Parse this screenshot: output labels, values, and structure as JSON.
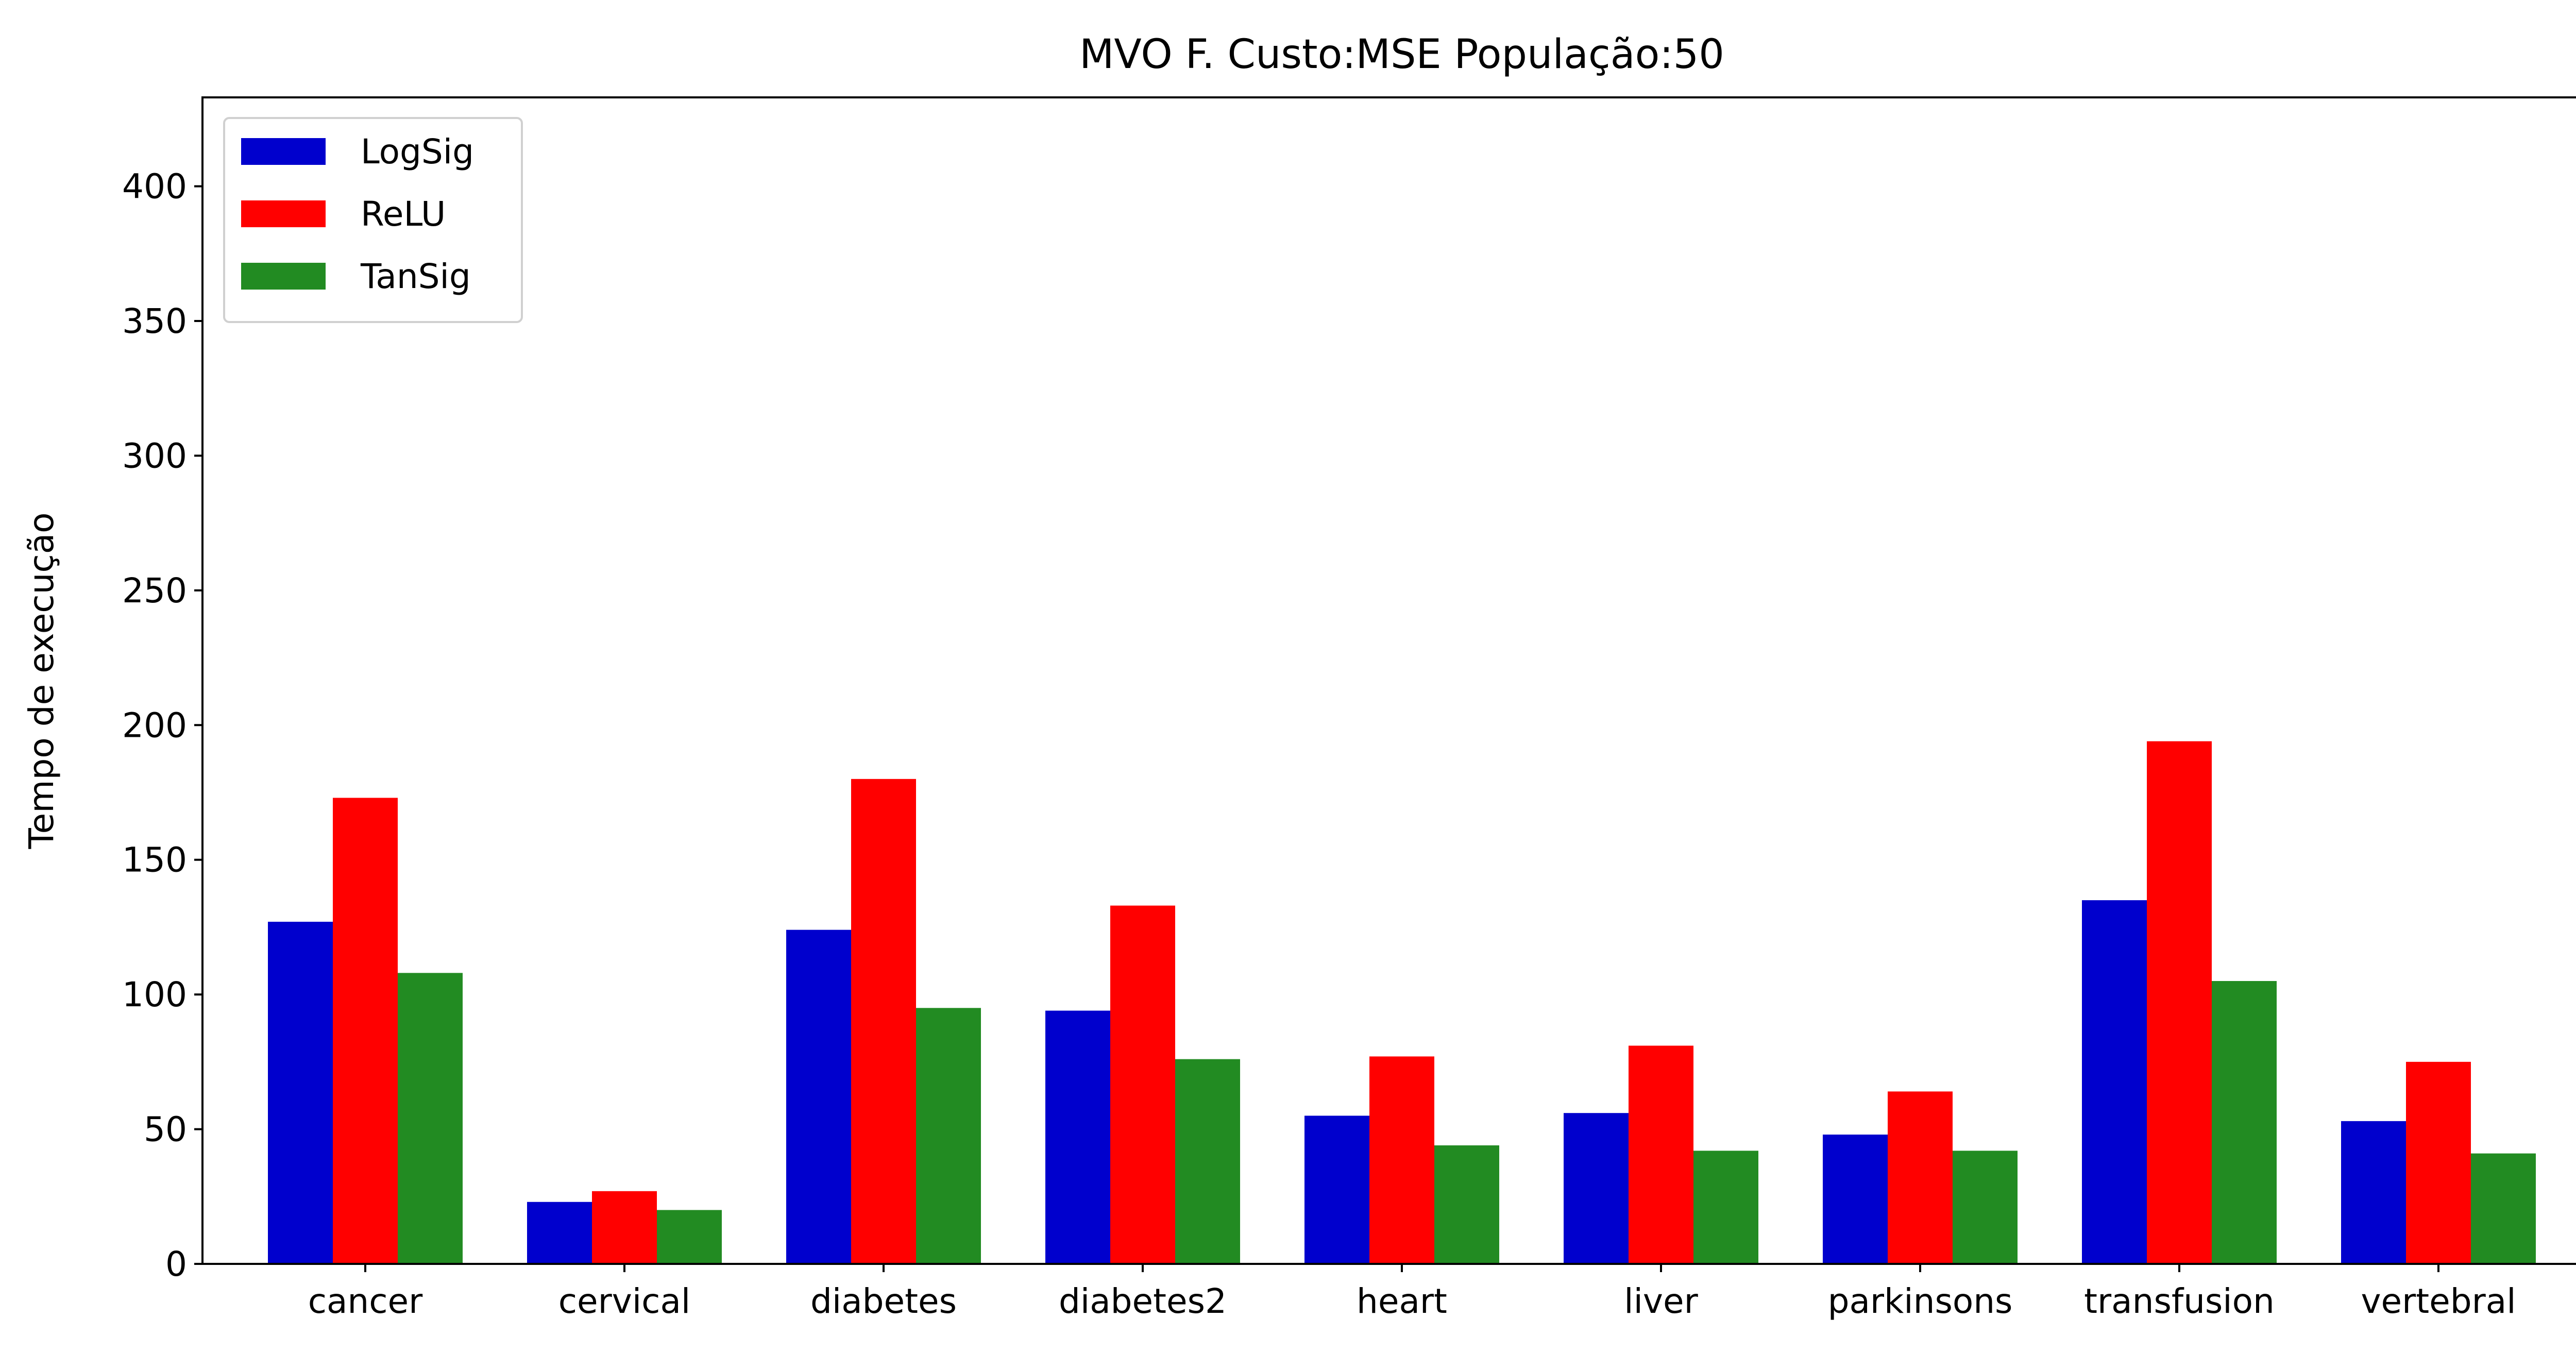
{
  "chart_data": {
    "type": "bar",
    "title": "MVO F. Custo:MSE População:50",
    "xlabel": "",
    "ylabel": "Tempo de execução",
    "categories": [
      "cancer",
      "cervical",
      "diabetes",
      "diabetes2",
      "heart",
      "liver",
      "parkinsons",
      "transfusion",
      "vertebral"
    ],
    "series": [
      {
        "name": "LogSig",
        "color": "#0000cd",
        "values": [
          127,
          23,
          124,
          94,
          55,
          56,
          48,
          135,
          53
        ]
      },
      {
        "name": "ReLU",
        "color": "#ff0000",
        "values": [
          173,
          27,
          180,
          133,
          77,
          81,
          64,
          194,
          75
        ]
      },
      {
        "name": "TanSig",
        "color": "#228b22",
        "values": [
          108,
          20,
          95,
          76,
          44,
          42,
          42,
          105,
          41
        ]
      }
    ],
    "ylim": [
      0,
      433
    ],
    "yticks": [
      0,
      50,
      100,
      150,
      200,
      250,
      300,
      350,
      400
    ],
    "grid": false,
    "legend_position": "top-left"
  }
}
